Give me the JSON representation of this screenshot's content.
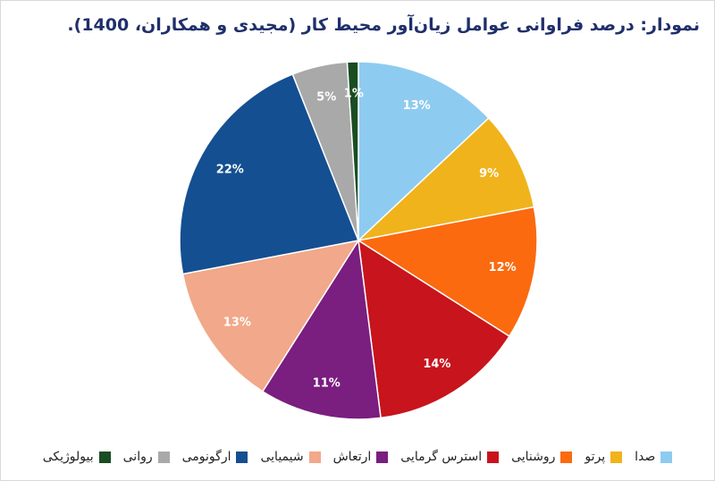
{
  "chart_data": {
    "type": "pie",
    "title": "نمودار: درصد فراوانی عوامل زیان‌آور محیط کار (مجیدی و همکاران، 1400).",
    "categories": [
      "صدا",
      "پرتو",
      "روشنایی",
      "استرس گرمایی",
      "ارتعاش",
      "شیمیایی",
      "ارگونومی",
      "روانی",
      "بیولوژیکی"
    ],
    "values": [
      13,
      9,
      12,
      14,
      11,
      13,
      22,
      5,
      1
    ],
    "value_labels": [
      "13%",
      "9%",
      "12%",
      "14%",
      "11%",
      "13%",
      "22%",
      "5%",
      "1%"
    ],
    "colors": [
      "#8ecbf0",
      "#f0b31b",
      "#fb6a0f",
      "#c8141c",
      "#7a1e7f",
      "#f2a88a",
      "#144f91",
      "#a9a9a9",
      "#1a4d22"
    ],
    "legend": "bottom"
  }
}
